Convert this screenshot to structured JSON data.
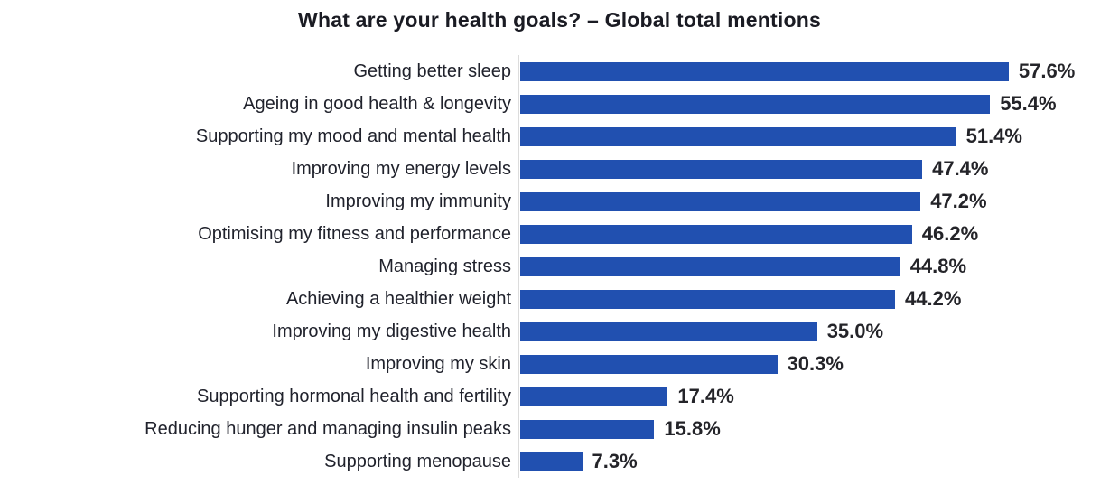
{
  "chart_data": {
    "type": "bar",
    "orientation": "horizontal",
    "title": "What are your health goals? – Global total mentions",
    "categories": [
      "Getting better sleep",
      "Ageing in good health & longevity",
      "Supporting my mood and mental health",
      "Improving my energy levels",
      "Improving my immunity",
      "Optimising my fitness and performance",
      "Managing stress",
      "Achieving a healthier weight",
      "Improving my digestive health",
      "Improving my skin",
      "Supporting hormonal health and fertility",
      "Reducing hunger and managing insulin peaks",
      "Supporting menopause"
    ],
    "values": [
      57.6,
      55.4,
      51.4,
      47.4,
      47.2,
      46.2,
      44.8,
      44.2,
      35.0,
      30.3,
      17.4,
      15.8,
      7.3
    ],
    "value_labels": [
      "57.6%",
      "55.4%",
      "51.4%",
      "47.4%",
      "47.2%",
      "46.2%",
      "44.8%",
      "44.2%",
      "35.0%",
      "30.3%",
      "17.4%",
      "15.8%",
      "7.3%"
    ],
    "xlabel": "",
    "ylabel": "",
    "xlim": [
      0,
      65
    ],
    "grid": false,
    "legend": false,
    "data_labels": true,
    "bar_color": "#2150B0",
    "title_color": "#1A1B23",
    "category_label_color": "#20222C",
    "value_label_color": "#242429",
    "axis_line_color": "#DCDCDC"
  }
}
